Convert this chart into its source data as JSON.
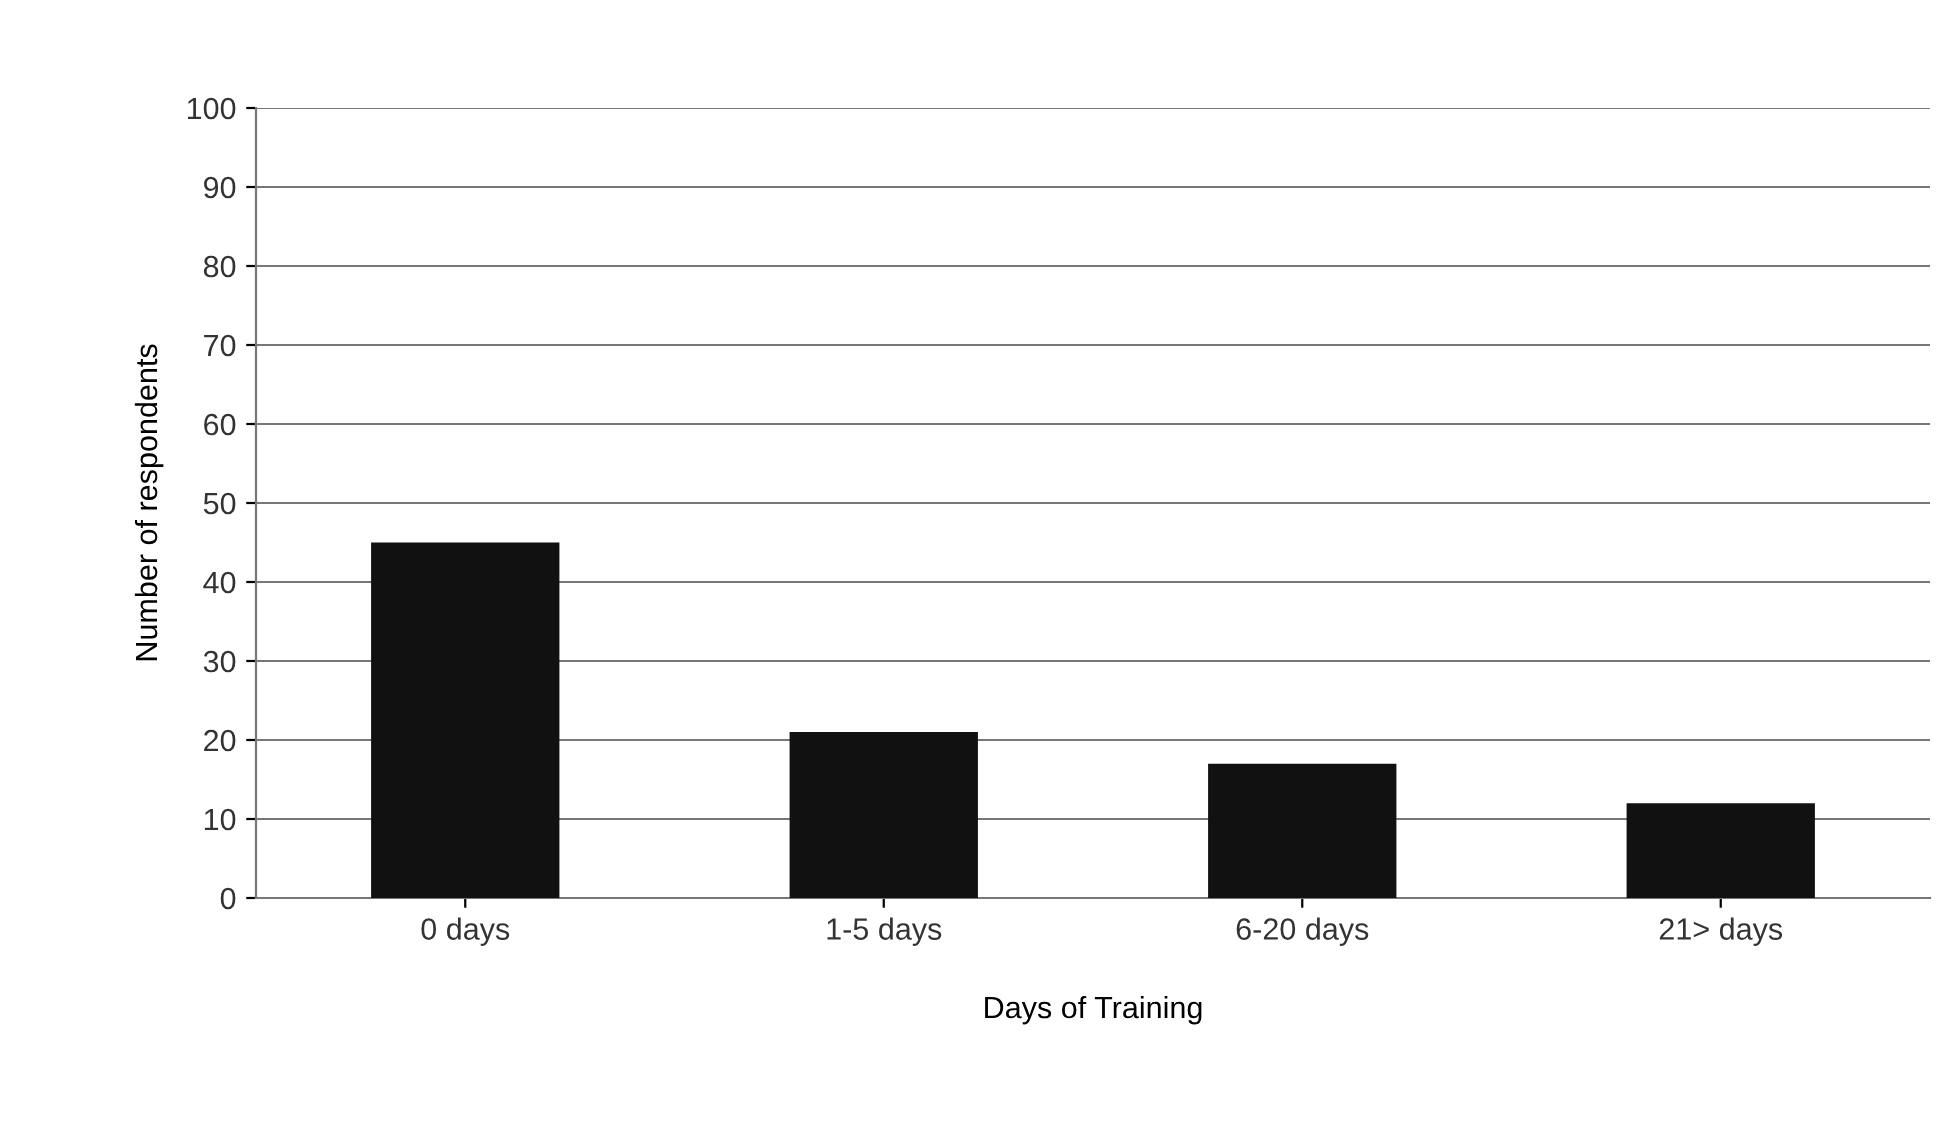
{
  "chart_data": {
    "type": "bar",
    "xlabel": "Days of Training",
    "ylabel": "Number of respondents",
    "categories": [
      "0 days",
      "1-5 days",
      "6-20 days",
      "21> days"
    ],
    "values": [
      45,
      21,
      17,
      12
    ],
    "color": "#111111",
    "ylim": [
      0,
      100
    ],
    "yticks": [
      0,
      10,
      20,
      30,
      40,
      50,
      60,
      70,
      80,
      90,
      100
    ],
    "grid": "y"
  }
}
